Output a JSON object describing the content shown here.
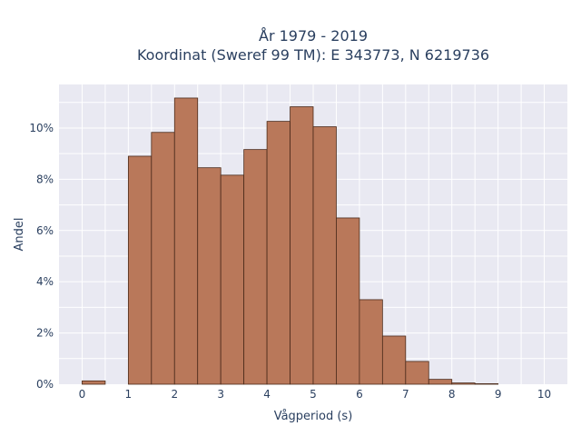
{
  "chart_data": {
    "type": "bar",
    "title": "År 1979 - 2019",
    "subtitle": "Koordinat (Sweref 99 TM): E 343773, N 6219736",
    "xlabel": "Vågperiod (s)",
    "ylabel": "Andel",
    "xlim": [
      -0.5,
      10.5
    ],
    "ylim": [
      0,
      11.7
    ],
    "x_ticks": [
      0,
      1,
      2,
      3,
      4,
      5,
      6,
      7,
      8,
      9,
      10
    ],
    "x_tick_labels": [
      "0",
      "1",
      "2",
      "3",
      "4",
      "5",
      "6",
      "7",
      "8",
      "9",
      "10"
    ],
    "y_ticks": [
      0,
      2,
      4,
      6,
      8,
      10
    ],
    "y_tick_labels": [
      "0%",
      "2%",
      "4%",
      "6%",
      "8%",
      "10%"
    ],
    "grid": true,
    "bin_width": 0.5,
    "bin_starts": [
      0,
      0.5,
      1,
      1.5,
      2,
      2.5,
      3,
      3.5,
      4,
      4.5,
      5,
      5.5,
      6,
      6.5,
      7,
      7.5,
      8,
      8.5,
      9,
      9.5
    ],
    "values": [
      0.13,
      0,
      8.9,
      9.83,
      11.17,
      8.45,
      8.16,
      9.16,
      10.26,
      10.83,
      10.05,
      6.49,
      3.3,
      1.88,
      0.89,
      0.19,
      0.05,
      0.02,
      0,
      0
    ],
    "colors": {
      "bar": "#b9785a",
      "bar_edge": "#4a2a1a",
      "plot_bg": "#e9e9f2",
      "grid": "#ffffff"
    }
  }
}
